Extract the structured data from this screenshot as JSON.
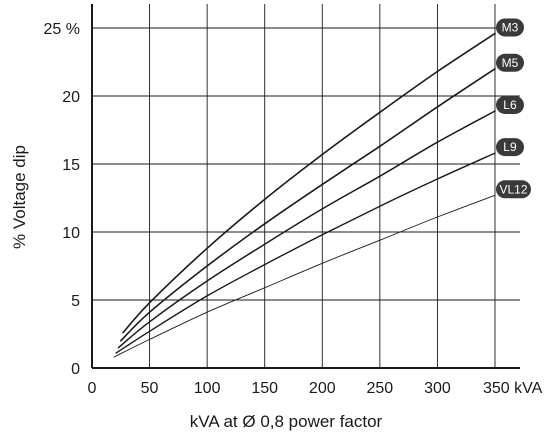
{
  "chart_data": {
    "type": "line",
    "title": "",
    "xlabel": "kVA at Ø 0,8 power factor",
    "ylabel": "% Voltage dip",
    "xlim": [
      0,
      375
    ],
    "ylim": [
      0,
      25.5
    ],
    "x_ticks": [
      {
        "value": 0,
        "label": "0"
      },
      {
        "value": 50,
        "label": "50"
      },
      {
        "value": 100,
        "label": "100"
      },
      {
        "value": 150,
        "label": "150"
      },
      {
        "value": 200,
        "label": "200"
      },
      {
        "value": 250,
        "label": "250"
      },
      {
        "value": 300,
        "label": "300"
      },
      {
        "value": 350,
        "label": "350 kVA"
      }
    ],
    "y_ticks": [
      {
        "value": 0,
        "label": "0"
      },
      {
        "value": 5,
        "label": "5"
      },
      {
        "value": 10,
        "label": "10"
      },
      {
        "value": 15,
        "label": "15"
      },
      {
        "value": 20,
        "label": "20"
      },
      {
        "value": 25,
        "label": "25 %"
      }
    ],
    "x_grid": [
      50,
      100,
      150,
      200,
      250,
      300,
      350
    ],
    "y_grid": [
      5,
      10,
      15,
      20,
      25
    ],
    "grid": true,
    "legend": "labels at line ends",
    "colors": {
      "line": "#1a1a1a",
      "badge": "#3a3a3a",
      "badge_text": "#ffffff"
    },
    "series": [
      {
        "name": "M3",
        "x": [
          27,
          50,
          100,
          150,
          200,
          250,
          300,
          350
        ],
        "y": [
          2.6,
          4.8,
          8.8,
          12.4,
          15.7,
          18.8,
          21.8,
          24.6
        ],
        "width": 1.6
      },
      {
        "name": "M5",
        "x": [
          25,
          50,
          100,
          150,
          200,
          250,
          300,
          350
        ],
        "y": [
          2.0,
          4.1,
          7.5,
          10.6,
          13.5,
          16.3,
          19.2,
          22.0
        ],
        "width": 1.6
      },
      {
        "name": "L6",
        "x": [
          23,
          50,
          100,
          150,
          200,
          250,
          300,
          350
        ],
        "y": [
          1.5,
          3.4,
          6.4,
          9.1,
          11.7,
          14.1,
          16.6,
          18.9
        ],
        "width": 1.5
      },
      {
        "name": "L9",
        "x": [
          21,
          50,
          100,
          150,
          200,
          250,
          300,
          350
        ],
        "y": [
          1.1,
          2.7,
          5.3,
          7.6,
          9.8,
          11.9,
          13.9,
          15.8
        ],
        "width": 1.4
      },
      {
        "name": "VL12",
        "x": [
          19,
          50,
          100,
          150,
          200,
          250,
          300,
          350
        ],
        "y": [
          0.8,
          2.1,
          4.1,
          5.9,
          7.7,
          9.4,
          11.1,
          12.7
        ],
        "width": 0.9
      }
    ]
  }
}
